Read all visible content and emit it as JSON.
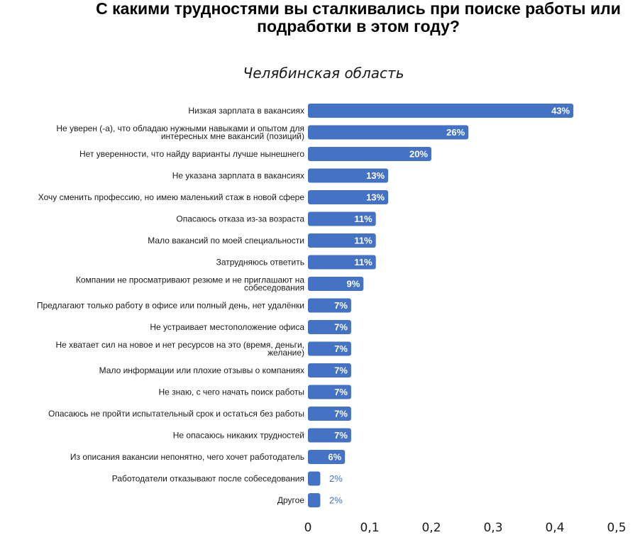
{
  "chart_data": {
    "type": "bar",
    "orientation": "horizontal",
    "title_lines": [
      "С какими трудностями вы сталкивались при поиске работы или",
      "подработки в этом году?"
    ],
    "subtitle": "Челябинская область",
    "categories": [
      "Низкая зарплата в вакансиях",
      "Не уверен (-а), что обладаю нужными навыками и опытом для интересных мне вакансий (позиций)",
      "Нет уверенности, что найду варианты лучше нынешнего",
      "Не указана зарплата в вакансиях",
      "Хочу сменить профессию, но имею маленький стаж в новой сфере",
      "Опасаюсь отказа из-за возраста",
      "Мало вакансий по моей специальности",
      "Затрудняюсь ответить",
      "Компании не просматривают резюме и не приглашают на собеседования",
      "Предлагают только работу в офисе или полный день, нет удалёнки",
      "Не устраивает местоположение офиса",
      "Не хватает сил на новое и нет ресурсов на это (время, деньги, желание)",
      "Мало информации или плохие отзывы о компаниях",
      "Не знаю, с чего начать поиск работы",
      "Опасаюсь не пройти испытательный срок и остаться без работы",
      "Не опасаюсь никаких трудностей",
      "Из описания вакансии непонятно, чего хочет работодатель",
      "Работодатели отказывают после собеседования",
      "Другое"
    ],
    "values": [
      0.43,
      0.26,
      0.2,
      0.13,
      0.13,
      0.11,
      0.11,
      0.11,
      0.09,
      0.07,
      0.07,
      0.07,
      0.07,
      0.07,
      0.07,
      0.07,
      0.06,
      0.02,
      0.02
    ],
    "value_labels": [
      "43%",
      "26%",
      "20%",
      "13%",
      "13%",
      "11%",
      "11%",
      "11%",
      "9%",
      "7%",
      "7%",
      "7%",
      "7%",
      "7%",
      "7%",
      "7%",
      "6%",
      "2%",
      "2%"
    ],
    "x_ticks": [
      "0",
      "0,1",
      "0,2",
      "0,3",
      "0,4",
      "0,5"
    ],
    "xlim": [
      0,
      0.5
    ],
    "bar_color": "#4472c4",
    "label_inside_color": "#ffffff",
    "label_outside_color": "#4472c4",
    "grid": false,
    "legend": "none"
  }
}
